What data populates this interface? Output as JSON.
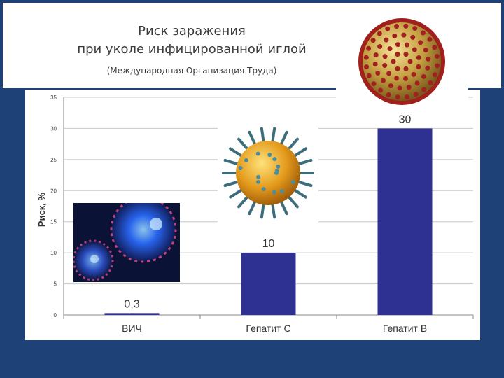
{
  "header": {
    "title_line1": "Риск заражения",
    "title_line2": "при уколе инфицированной иглой",
    "source": "(Международная Организация Труда)"
  },
  "images": {
    "hiv": "hiv-virus-image",
    "hepatitis_c": "hepatitis-c-virus-image",
    "hepatitis_b": "hepatitis-b-virus-image"
  },
  "colors": {
    "background": "#1e4277",
    "bar": "#2e3192",
    "grid": "#c8c8c8"
  },
  "chart_data": {
    "type": "bar",
    "title": "",
    "xlabel": "",
    "ylabel": "Риск, %",
    "categories": [
      "ВИЧ",
      "Гепатит С",
      "Гепатит В"
    ],
    "values": [
      0.3,
      10,
      30
    ],
    "value_labels": [
      "0,3",
      "10",
      "30"
    ],
    "ylim": [
      0,
      35
    ],
    "yticks": [
      0,
      5,
      10,
      15,
      20,
      25,
      30,
      35
    ],
    "grid": true,
    "legend": "none"
  }
}
